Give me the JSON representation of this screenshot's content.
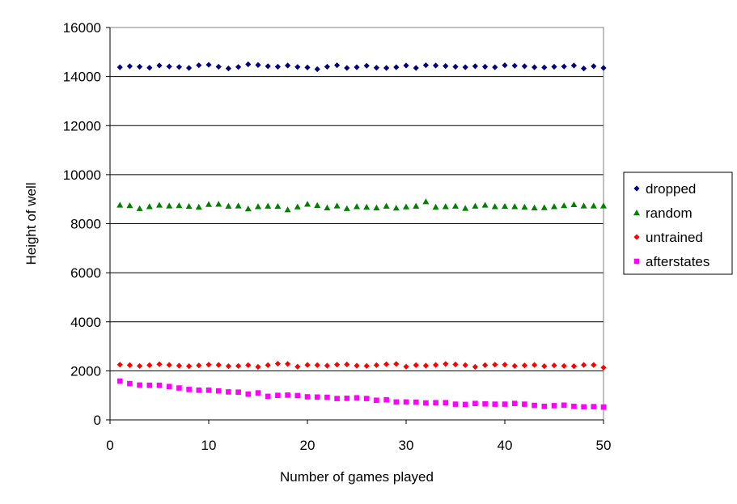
{
  "chart_data": {
    "type": "scatter",
    "xlabel": "Number of games played",
    "ylabel": "Height of well",
    "xlim": [
      0,
      50
    ],
    "ylim": [
      0,
      16000
    ],
    "xticks": [
      "0",
      "10",
      "20",
      "30",
      "40",
      "50"
    ],
    "yticks": [
      "0",
      "2000",
      "4000",
      "6000",
      "8000",
      "10000",
      "12000",
      "14000",
      "16000"
    ],
    "grid": "horizontal major gridlines",
    "legend_position": "right",
    "x": [
      1,
      2,
      3,
      4,
      5,
      6,
      7,
      8,
      9,
      10,
      11,
      12,
      13,
      14,
      15,
      16,
      17,
      18,
      19,
      20,
      21,
      22,
      23,
      24,
      25,
      26,
      27,
      28,
      29,
      30,
      31,
      32,
      33,
      34,
      35,
      36,
      37,
      38,
      39,
      40,
      41,
      42,
      43,
      44,
      45,
      46,
      47,
      48,
      49,
      50
    ],
    "series": [
      {
        "name": "dropped",
        "marker": "diamond",
        "color": "#000080",
        "values": [
          14380,
          14420,
          14400,
          14360,
          14450,
          14410,
          14390,
          14350,
          14460,
          14480,
          14400,
          14330,
          14390,
          14500,
          14470,
          14420,
          14400,
          14450,
          14390,
          14370,
          14300,
          14400,
          14460,
          14350,
          14380,
          14440,
          14360,
          14350,
          14380,
          14450,
          14350,
          14460,
          14450,
          14430,
          14400,
          14380,
          14420,
          14400,
          14380,
          14460,
          14440,
          14420,
          14380,
          14370,
          14400,
          14410,
          14450,
          14330,
          14420,
          14350
        ]
      },
      {
        "name": "random",
        "marker": "triangle",
        "color": "#008000",
        "values": [
          8760,
          8740,
          8620,
          8700,
          8760,
          8730,
          8740,
          8710,
          8680,
          8790,
          8800,
          8720,
          8730,
          8610,
          8700,
          8720,
          8710,
          8570,
          8690,
          8800,
          8750,
          8650,
          8730,
          8620,
          8700,
          8680,
          8650,
          8720,
          8640,
          8690,
          8720,
          8900,
          8680,
          8700,
          8720,
          8630,
          8720,
          8760,
          8700,
          8710,
          8700,
          8680,
          8650,
          8660,
          8700,
          8740,
          8780,
          8730,
          8730,
          8730
        ]
      },
      {
        "name": "untrained",
        "marker": "diamond",
        "color": "#ff0000",
        "values": [
          2250,
          2230,
          2200,
          2230,
          2270,
          2240,
          2210,
          2190,
          2220,
          2250,
          2240,
          2190,
          2200,
          2230,
          2160,
          2230,
          2290,
          2280,
          2170,
          2240,
          2230,
          2210,
          2250,
          2260,
          2210,
          2200,
          2230,
          2270,
          2280,
          2170,
          2230,
          2210,
          2240,
          2280,
          2260,
          2230,
          2160,
          2230,
          2250,
          2250,
          2200,
          2220,
          2240,
          2190,
          2220,
          2200,
          2190,
          2240,
          2240,
          2130
        ]
      },
      {
        "name": "afterstates",
        "marker": "square",
        "color": "#ff00ff",
        "values": [
          1580,
          1480,
          1420,
          1410,
          1410,
          1360,
          1300,
          1240,
          1210,
          1210,
          1180,
          1140,
          1130,
          1050,
          1100,
          960,
          1000,
          1010,
          990,
          940,
          930,
          920,
          870,
          880,
          900,
          870,
          800,
          820,
          730,
          730,
          720,
          690,
          700,
          700,
          640,
          630,
          670,
          650,
          640,
          640,
          670,
          640,
          590,
          550,
          580,
          600,
          550,
          530,
          540,
          520
        ]
      }
    ]
  }
}
